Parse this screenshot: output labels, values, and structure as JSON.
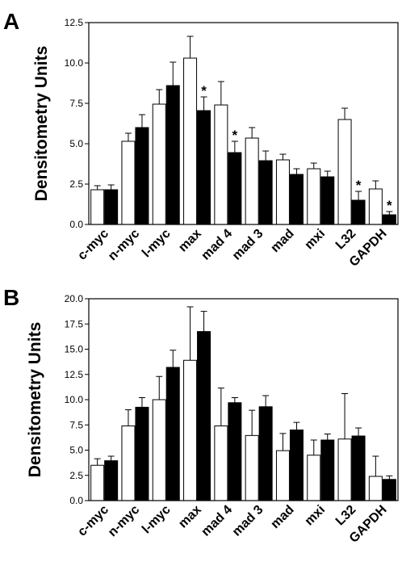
{
  "chart_data": [
    {
      "panel": "A",
      "type": "bar",
      "ylabel": "Densitometry Units",
      "ylim": [
        0,
        12.5
      ],
      "yticks": [
        "0.0",
        "2.5",
        "5.0",
        "7.5",
        "10.0",
        "12.5"
      ],
      "categories": [
        "c-myc",
        "n-myc",
        "l-myc",
        "max",
        "mad 4",
        "mad 3",
        "mad",
        "mxi",
        "L32",
        "GAPDH"
      ],
      "series": [
        {
          "fill": "#ffffff",
          "values": [
            2.15,
            5.15,
            7.45,
            10.3,
            7.4,
            5.35,
            4.0,
            3.45,
            6.5,
            2.2
          ],
          "errors": [
            0.25,
            0.5,
            0.9,
            1.35,
            1.45,
            0.65,
            0.35,
            0.35,
            0.7,
            0.5
          ]
        },
        {
          "fill": "#000000",
          "values": [
            2.15,
            6.0,
            8.6,
            7.05,
            4.45,
            3.95,
            3.1,
            2.95,
            1.5,
            0.6
          ],
          "errors": [
            0.3,
            0.8,
            1.45,
            0.85,
            0.7,
            0.6,
            0.35,
            0.35,
            0.55,
            0.2
          ]
        }
      ],
      "significance_markers": [
        {
          "category": "max",
          "label": "*"
        },
        {
          "category": "mad 4",
          "label": "*"
        },
        {
          "category": "L32",
          "label": "*"
        },
        {
          "category": "GAPDH",
          "label": "*"
        }
      ]
    },
    {
      "panel": "B",
      "type": "bar",
      "ylabel": "Densitometry Units",
      "ylim": [
        0,
        20.0
      ],
      "yticks": [
        "0.0",
        "2.5",
        "5.0",
        "7.5",
        "10.0",
        "12.5",
        "15.0",
        "17.5",
        "20.0"
      ],
      "categories": [
        "c-myc",
        "n-myc",
        "l-myc",
        "max",
        "mad 4",
        "mad 3",
        "mad",
        "mxi",
        "L32",
        "GAPDH"
      ],
      "series": [
        {
          "fill": "#ffffff",
          "values": [
            3.5,
            7.4,
            10.0,
            13.9,
            7.4,
            6.45,
            4.95,
            4.5,
            6.1,
            2.4
          ],
          "errors": [
            0.65,
            1.6,
            2.3,
            5.3,
            3.75,
            2.5,
            1.7,
            1.5,
            4.5,
            2.0
          ]
        },
        {
          "fill": "#000000",
          "values": [
            3.95,
            9.25,
            13.2,
            16.75,
            9.7,
            9.3,
            7.0,
            6.0,
            6.4,
            2.1
          ],
          "errors": [
            0.45,
            0.95,
            1.7,
            2.0,
            0.5,
            1.1,
            0.75,
            0.6,
            0.8,
            0.35
          ]
        }
      ]
    }
  ],
  "panels": [
    {
      "letter": "A"
    },
    {
      "letter": "B"
    }
  ]
}
